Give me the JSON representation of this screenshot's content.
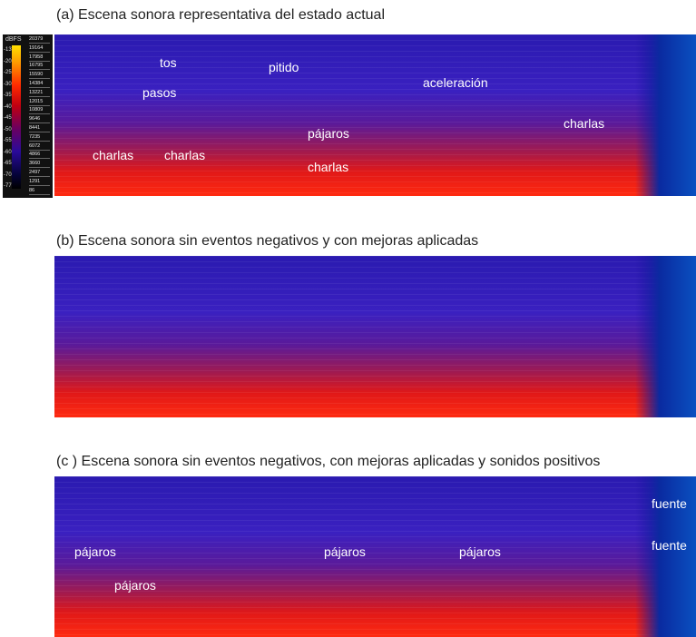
{
  "panels": [
    {
      "title": "(a) Escena sonora representativa del estado actual",
      "annotations": [
        "tos",
        "pitido",
        "pasos",
        "aceleración",
        "charlas",
        "pájaros",
        "charlas",
        "charlas",
        "charlas"
      ]
    },
    {
      "title": "(b) Escena sonora sin eventos negativos y con mejoras aplicadas",
      "annotations": []
    },
    {
      "title": "(c ) Escena sonora sin eventos negativos, con mejoras aplicadas y sonidos positivos",
      "annotations": [
        "fuente",
        "fuente",
        "pájaros",
        "pájaros",
        "pájaros",
        "pájaros"
      ]
    }
  ],
  "legend": {
    "unit": "dBFS",
    "db_ticks": [
      "-13",
      "-20",
      "-25",
      "-30",
      "-35",
      "-40",
      "-45",
      "-50",
      "-55",
      "-60",
      "-65",
      "-70",
      "-77"
    ],
    "freq_ticks": [
      "20379",
      "19164",
      "17958",
      "16795",
      "15590",
      "14384",
      "13221",
      "12015",
      "10809",
      "9646",
      "8441",
      "7235",
      "6072",
      "4866",
      "3660",
      "2497",
      "1291",
      "86"
    ]
  },
  "colors": {
    "low": "#1a0f9a",
    "mid": "#7a1a8a",
    "high": "#e01010",
    "annotation": "#ffffff"
  }
}
